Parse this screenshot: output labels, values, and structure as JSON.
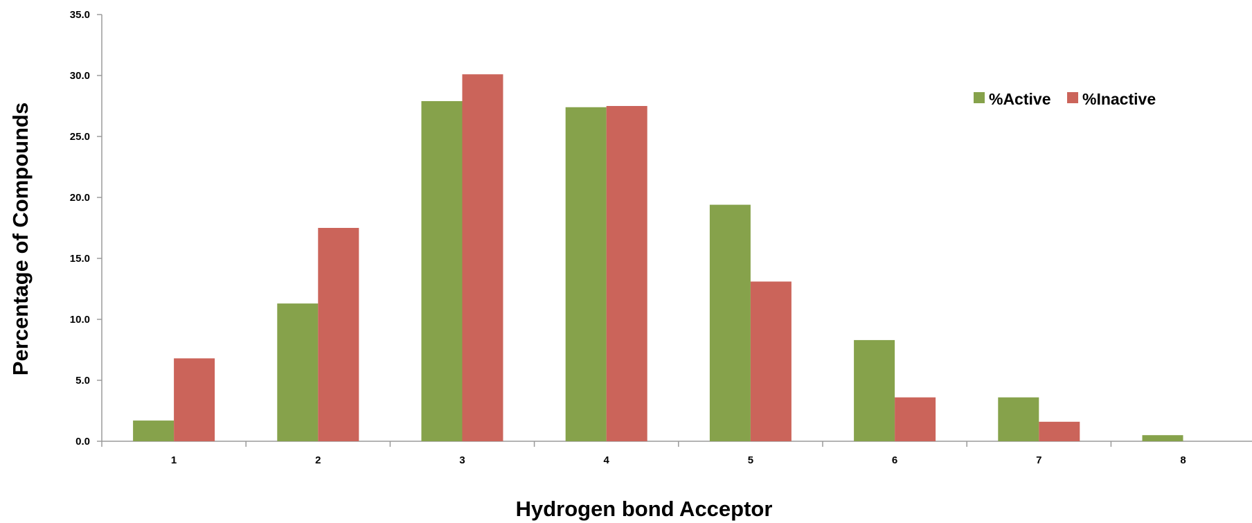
{
  "chart_data": {
    "type": "bar",
    "title": "",
    "xlabel": "Hydrogen bond Acceptor",
    "ylabel": "Percentage of Compounds",
    "categories": [
      "1",
      "2",
      "3",
      "4",
      "5",
      "6",
      "7",
      "8"
    ],
    "series": [
      {
        "name": "%Active",
        "color": "#86a24b",
        "values": [
          1.7,
          11.3,
          27.9,
          27.4,
          19.4,
          8.3,
          3.6,
          0.5
        ]
      },
      {
        "name": "%Inactive",
        "color": "#cb645a",
        "values": [
          6.8,
          17.5,
          30.1,
          27.5,
          13.1,
          3.6,
          1.6,
          0.0
        ]
      }
    ],
    "ylim": [
      0,
      35
    ],
    "yticks": [
      "0.0",
      "5.0",
      "10.0",
      "15.0",
      "20.0",
      "25.0",
      "30.0",
      "35.0"
    ],
    "grid": false,
    "legend_position": "top-right"
  }
}
